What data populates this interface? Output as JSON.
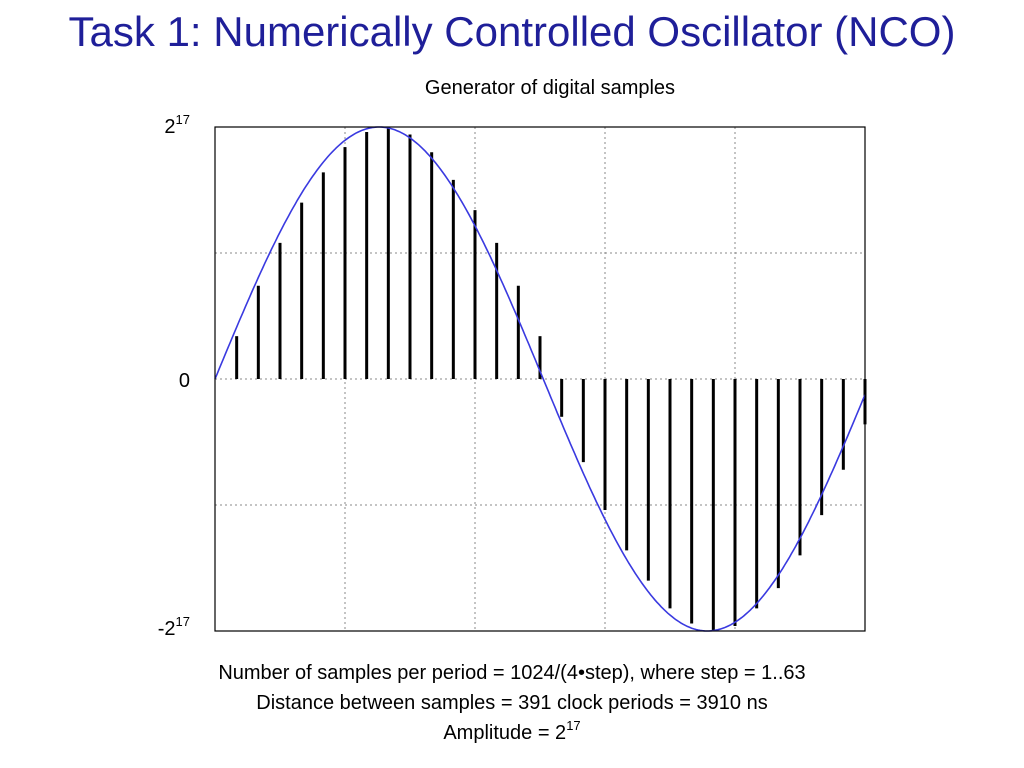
{
  "slide": {
    "title": "Task 1: Numerically Controlled Oscillator (NCO)"
  },
  "chart_data": {
    "type": "bar",
    "title": "Generator of digital samples",
    "xlabel": "",
    "ylabel": "",
    "y_ticks": [
      {
        "base": "2",
        "exp": "17",
        "value": 1
      },
      {
        "base": "0",
        "exp": "",
        "value": 0
      },
      {
        "base": "-2",
        "exp": "17",
        "value": -1
      }
    ],
    "ylim": [
      -1,
      1
    ],
    "xlim": [
      0,
      30
    ],
    "grid": true,
    "sample_values": [
      0.17,
      0.37,
      0.54,
      0.7,
      0.82,
      0.92,
      0.98,
      1.0,
      0.97,
      0.9,
      0.79,
      0.67,
      0.54,
      0.37,
      0.17,
      -0.15,
      -0.33,
      -0.52,
      -0.68,
      -0.8,
      -0.91,
      -0.97,
      -1.0,
      -0.98,
      -0.91,
      -0.83,
      -0.7,
      -0.54,
      -0.36,
      -0.18
    ],
    "sine_series": {
      "amplitude": 1,
      "color": "#3a3ae0"
    },
    "bar_color": "#000000",
    "grid_color": "#888888"
  },
  "caption": {
    "line1": "Number of samples per period = 1024/(4•step), where step = 1..63",
    "line2": "Distance between samples = 391 clock periods = 3910 ns",
    "line3_text": "Amplitude = 2",
    "line3_exp": "17"
  }
}
